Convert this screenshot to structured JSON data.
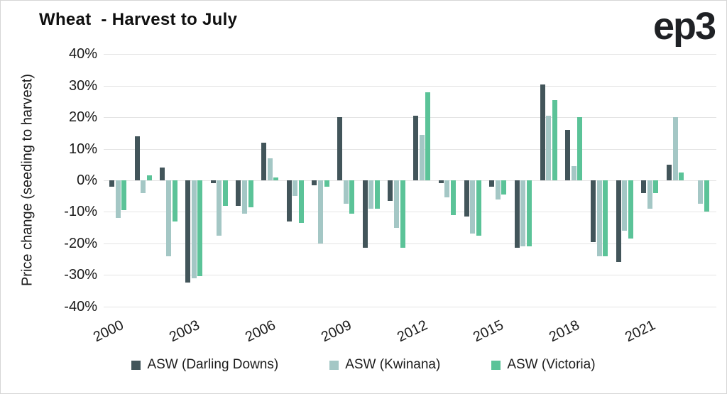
{
  "header": {
    "title": "Wheat  - Harvest to July",
    "logo": "ep3"
  },
  "chart_data": {
    "type": "bar",
    "title": "Wheat - Harvest to July",
    "xlabel": "",
    "ylabel": "Price change (seeding to harvest)",
    "ylim": [
      -40,
      40
    ],
    "ytick_step": 10,
    "ytick_suffix": "%",
    "grid": "horizontal",
    "legend_position": "bottom",
    "categories": [
      "2000",
      "2001",
      "2002",
      "2003",
      "2004",
      "2005",
      "2006",
      "2007",
      "2008",
      "2009",
      "2010",
      "2011",
      "2012",
      "2013",
      "2014",
      "2015",
      "2016",
      "2017",
      "2018",
      "2019",
      "2020",
      "2021",
      "2022",
      "2023"
    ],
    "xtick_labels": [
      "2000",
      "2003",
      "2006",
      "2009",
      "2012",
      "2015",
      "2018",
      "2021"
    ],
    "xtick_every": 3,
    "series": [
      {
        "name": "ASW (Darling Downs)",
        "color": "#42555a",
        "values": [
          -2,
          14,
          4,
          -32.5,
          -1,
          -8,
          12,
          -13,
          -1.5,
          20,
          -21.5,
          -6.5,
          20.5,
          -1,
          -11.5,
          -2,
          -21.5,
          30.5,
          16,
          -19.5,
          -26,
          -4,
          5,
          null
        ]
      },
      {
        "name": "ASW (Kwinana)",
        "color": "#a4c7c5",
        "values": [
          -12,
          -4,
          -24,
          -31,
          -17.5,
          -10.5,
          7,
          -5,
          -20,
          -7.5,
          -9,
          -15,
          14.5,
          -5.5,
          -17,
          -6,
          -21,
          20.5,
          4.5,
          -24,
          -16,
          -9,
          20,
          -7.5
        ]
      },
      {
        "name": "ASW (Victoria)",
        "color": "#5bc398",
        "values": [
          -9.5,
          1.5,
          -13,
          -30.5,
          -8,
          -8.5,
          1,
          -13.5,
          -2,
          -10.5,
          -9,
          -21.5,
          28,
          -11,
          -17.5,
          -4.5,
          -21,
          25.5,
          20,
          -24,
          -18.5,
          -4,
          2.5,
          -10
        ]
      }
    ]
  },
  "colors": {
    "background": "#ffffff",
    "gridline": "#e4e4e4",
    "text": "#1b1b1b",
    "title": "#0f0f0f"
  }
}
